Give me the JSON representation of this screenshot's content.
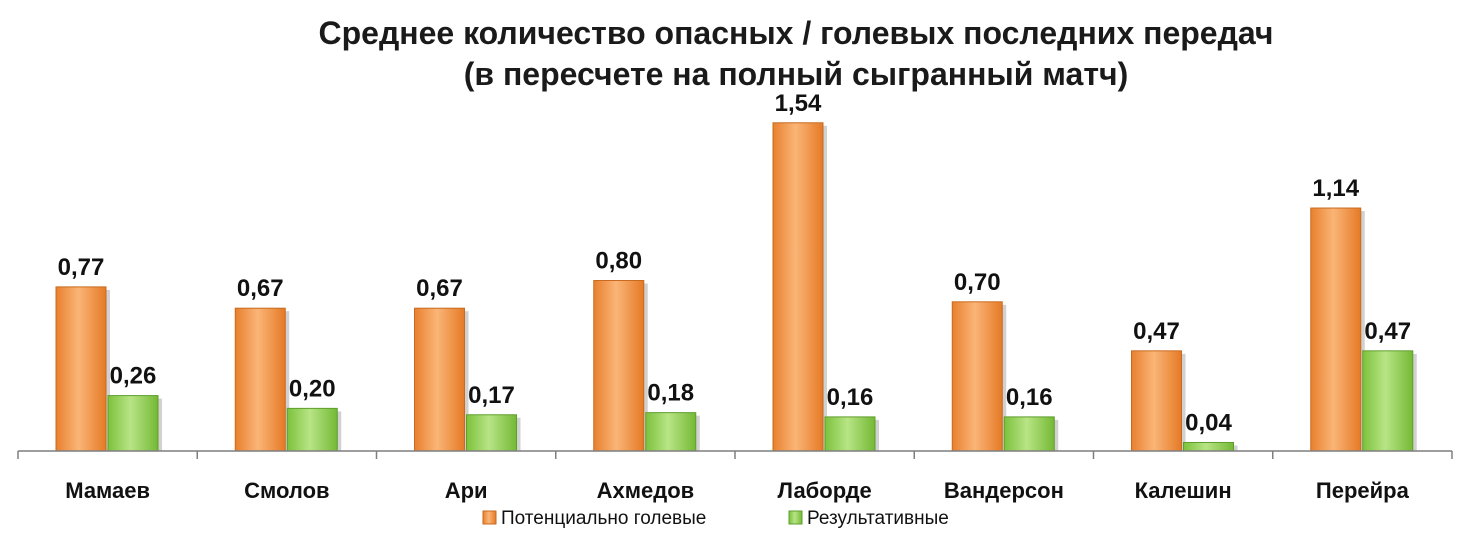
{
  "chart_data": {
    "type": "bar",
    "title_lines": [
      "Среднее количество  опасных / голевых последних передач",
      "(в пересчете на полный сыгранный матч)"
    ],
    "xlabel": "",
    "ylabel": "",
    "categories": [
      "Мамаев",
      "Смолов",
      "Ари",
      "Ахмедов",
      "Лаборде",
      "Вандерсон",
      "Калешин",
      "Перейра"
    ],
    "series": [
      {
        "name": "Потенциально голевые",
        "color": "#f79646",
        "values": [
          0.77,
          0.67,
          0.67,
          0.8,
          1.54,
          0.7,
          0.47,
          1.14
        ],
        "labels": [
          "0,77",
          "0,67",
          "0,67",
          "0,80",
          "1,54",
          "0,70",
          "0,47",
          "1,14"
        ]
      },
      {
        "name": "Результативные",
        "color": "#92d050",
        "values": [
          0.26,
          0.2,
          0.17,
          0.18,
          0.16,
          0.16,
          0.04,
          0.47
        ],
        "labels": [
          "0,26",
          "0,20",
          "0,17",
          "0,18",
          "0,16",
          "0,16",
          "0,04",
          "0,47"
        ]
      }
    ],
    "ylim": [
      0,
      1.6
    ],
    "grid": false,
    "legend_position": "bottom"
  }
}
